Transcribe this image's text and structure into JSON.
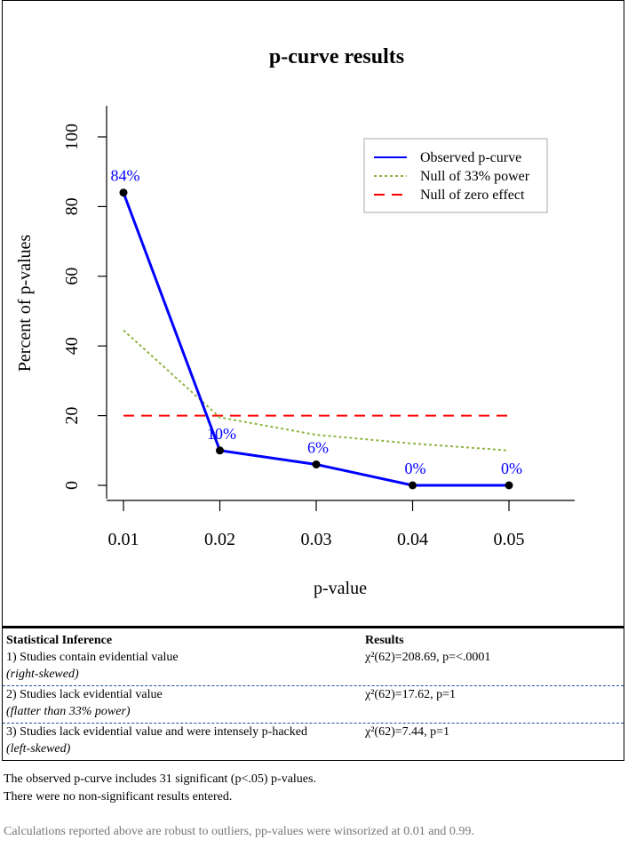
{
  "chart_data": {
    "type": "line",
    "title": "p-curve results",
    "xlabel": "p-value",
    "ylabel": "Percent of p-values",
    "x": [
      0.01,
      0.02,
      0.03,
      0.04,
      0.05
    ],
    "x_tick_labels": [
      "0.01",
      "0.02",
      "0.03",
      "0.04",
      "0.05"
    ],
    "ylim": [
      0,
      100
    ],
    "y_ticks": [
      0,
      20,
      40,
      60,
      80,
      100
    ],
    "series": [
      {
        "name": "Observed p-curve",
        "values": [
          84,
          10,
          6,
          0,
          0
        ],
        "color": "#0000ff",
        "style": "solid",
        "markers": true,
        "point_labels": [
          "84%",
          "10%",
          "6%",
          "0%",
          "0%"
        ]
      },
      {
        "name": "Null of 33% power",
        "values": [
          44.5,
          19.5,
          14.5,
          12,
          10
        ],
        "color": "#8db43f",
        "style": "dotted"
      },
      {
        "name": "Null of zero effect",
        "values": [
          20,
          20,
          20,
          20,
          20
        ],
        "color": "#ff0000",
        "style": "dashed"
      }
    ],
    "legend_position": "top-right",
    "grid": false
  },
  "table": {
    "header_inference": "Statistical Inference",
    "header_results": "Results",
    "rows": [
      {
        "label": "1) Studies contain evidential value",
        "sub": "(right-skewed)",
        "result": "χ²(62)=208.69, p=<.0001"
      },
      {
        "label": "2) Studies lack evidential value",
        "sub": "(flatter than 33% power)",
        "result": "χ²(62)=17.62, p=1"
      },
      {
        "label": "3) Studies lack evidential value and were intensely p-hacked",
        "sub": "(left-skewed)",
        "result": "χ²(62)=7.44, p=1"
      }
    ]
  },
  "notes": {
    "line1": "The observed p-curve includes 31 significant (p<.05) p-values.",
    "line2": "There were no non-significant results entered.",
    "footer": "Calculations reported above are robust to outliers, pp-values were winsorized at 0.01 and 0.99."
  }
}
